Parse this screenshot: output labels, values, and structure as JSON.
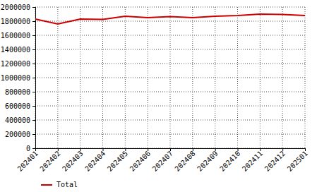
{
  "chart_data": {
    "type": "line",
    "categories": [
      "202401",
      "202402",
      "202403",
      "202404",
      "202405",
      "202406",
      "202407",
      "202408",
      "202409",
      "202410",
      "202411",
      "202412",
      "202501"
    ],
    "series": [
      {
        "name": "Total",
        "color": "#cc0000",
        "values": [
          1830000,
          1760000,
          1830000,
          1825000,
          1870000,
          1850000,
          1865000,
          1850000,
          1870000,
          1880000,
          1900000,
          1895000,
          1880000
        ]
      }
    ],
    "ylim": [
      0,
      2000000
    ],
    "yticks": [
      0,
      200000,
      400000,
      600000,
      800000,
      1000000,
      1200000,
      1400000,
      1600000,
      1800000,
      2000000
    ],
    "grid": true,
    "legend": "bottom-left"
  }
}
